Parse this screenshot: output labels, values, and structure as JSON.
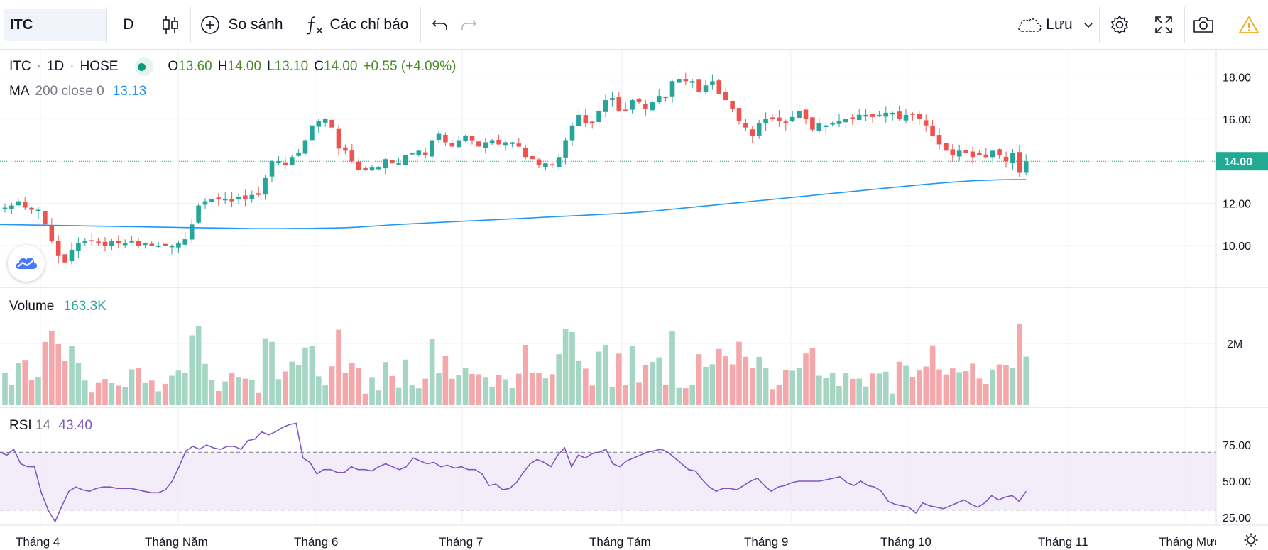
{
  "toolbar": {
    "symbol": "ITC",
    "interval": "D",
    "compare_label": "So sánh",
    "indicators_label": "Các chỉ báo",
    "save_label": "Lưu"
  },
  "legend": {
    "symbol": "ITC",
    "interval": "1D",
    "exchange": "HOSE",
    "open_label": "O",
    "open": "13.60",
    "high_label": "H",
    "high": "14.00",
    "low_label": "L",
    "low": "13.10",
    "close_label": "C",
    "close": "14.00",
    "change": "+0.55 (+4.09%)",
    "ma_label": "MA",
    "ma_params": "200 close 0",
    "ma_value": "13.13"
  },
  "volume": {
    "label": "Volume",
    "value": "163.3K",
    "axis_tick": "2M"
  },
  "rsi": {
    "label": "RSI",
    "period": "14",
    "value": "43.40",
    "upper": 70,
    "lower": 30
  },
  "colors": {
    "up": "#26a69a",
    "down": "#ef5350",
    "ma": "#2196f3",
    "rsi": "#7e57c2",
    "vol_up": "#a5d6c3",
    "vol_down": "#f5a8ab",
    "current_price_bg": "#22ab94"
  },
  "chart_data": [
    {
      "type": "candlestick",
      "title": "ITC · 1D · HOSE",
      "price_ticks": [
        10.0,
        12.0,
        14.0,
        16.0,
        18.0
      ],
      "current_price": 14.0,
      "x_ticks": [
        "Tháng 4",
        "Tháng Năm",
        "Tháng 6",
        "Tháng 7",
        "Tháng Tám",
        "Tháng 9",
        "Tháng 10",
        "Tháng 11",
        "Tháng Mười Hai"
      ],
      "close": [
        11.8,
        11.9,
        12.1,
        11.8,
        11.7,
        11.7,
        11.0,
        10.2,
        9.5,
        9.2,
        9.8,
        10.1,
        10.2,
        10.2,
        10.1,
        10.0,
        10.2,
        10.1,
        10.1,
        10.2,
        10.0,
        10.1,
        10.0,
        10.0,
        10.0,
        10.0,
        10.1,
        10.3,
        11.0,
        11.9,
        12.1,
        12.2,
        12.2,
        12.2,
        12.1,
        12.3,
        12.2,
        12.4,
        12.4,
        13.2,
        14.0,
        14.0,
        13.8,
        14.2,
        14.4,
        15.0,
        15.7,
        15.9,
        16.0,
        15.6,
        14.6,
        14.5,
        14.0,
        13.6,
        13.6,
        13.7,
        13.7,
        14.1,
        13.9,
        13.9,
        14.3,
        14.4,
        14.5,
        14.3,
        15.0,
        15.3,
        14.9,
        14.7,
        15.0,
        15.2,
        15.0,
        14.7,
        14.9,
        15.0,
        14.8,
        14.9,
        14.9,
        14.7,
        14.2,
        14.1,
        13.8,
        13.9,
        13.8,
        14.2,
        15.0,
        15.7,
        16.2,
        15.8,
        15.8,
        16.4,
        16.9,
        17.0,
        16.4,
        16.4,
        16.9,
        16.8,
        16.5,
        16.8,
        17.1,
        17.0,
        17.8,
        17.9,
        17.8,
        17.8,
        17.3,
        17.6,
        17.8,
        17.2,
        16.9,
        16.5,
        15.9,
        15.6,
        15.2,
        15.8,
        16.0,
        16.0,
        15.9,
        15.8,
        16.1,
        16.4,
        16.0,
        15.5,
        15.8,
        15.7,
        15.8,
        15.9,
        16.0,
        16.0,
        16.2,
        16.2,
        16.1,
        16.2,
        16.3,
        16.3,
        16.0,
        16.2,
        16.2,
        16.0,
        15.7,
        15.2,
        14.8,
        14.5,
        14.3,
        14.5,
        14.4,
        14.2,
        14.3,
        14.2,
        14.5,
        14.3,
        14.0,
        14.4,
        13.45,
        14.0
      ],
      "ma200": [
        11.0,
        10.99,
        10.98,
        10.97,
        10.96,
        10.95,
        10.94,
        10.93,
        10.92,
        10.91,
        10.9,
        10.89,
        10.88,
        10.87,
        10.86,
        10.85,
        10.84,
        10.83,
        10.82,
        10.81,
        10.8,
        10.8,
        10.8,
        10.81,
        10.81,
        10.82,
        10.83,
        10.85,
        10.88,
        10.92,
        10.96,
        11.0,
        11.03,
        11.06,
        11.09,
        11.12,
        11.15,
        11.18,
        11.21,
        11.24,
        11.27,
        11.3,
        11.33,
        11.36,
        11.39,
        11.42,
        11.45,
        11.48,
        11.51,
        11.55,
        11.59,
        11.64,
        11.7,
        11.76,
        11.82,
        11.88,
        11.94,
        12.0,
        12.06,
        12.12,
        12.18,
        12.24,
        12.3,
        12.36,
        12.42,
        12.48,
        12.54,
        12.6,
        12.66,
        12.72,
        12.78,
        12.84,
        12.9,
        12.95,
        13.0,
        13.04,
        13.08,
        13.1,
        13.12,
        13.13,
        13.13
      ]
    },
    {
      "type": "bar",
      "title": "Volume",
      "y_ticks": [
        "2M"
      ],
      "latest": "163.3K"
    },
    {
      "type": "line",
      "title": "RSI 14",
      "y_ticks": [
        25.0,
        50.0,
        75.0
      ],
      "values": [
        70,
        68,
        72,
        62,
        60,
        60,
        42,
        30,
        22,
        33,
        43,
        46,
        44,
        43,
        45,
        46,
        46,
        45,
        45,
        45,
        44,
        43,
        42,
        42,
        44,
        50,
        60,
        71,
        74,
        72,
        75,
        73,
        72,
        74,
        74,
        72,
        78,
        79,
        84,
        82,
        84,
        87,
        89,
        90,
        66,
        63,
        55,
        58,
        58,
        56,
        56,
        60,
        58,
        58,
        57,
        60,
        62,
        60,
        58,
        60,
        66,
        64,
        62,
        63,
        60,
        61,
        59,
        60,
        58,
        58,
        55,
        47,
        48,
        44,
        45,
        49,
        56,
        62,
        65,
        63,
        60,
        68,
        73,
        60,
        68,
        66,
        69,
        70,
        72,
        62,
        60,
        64,
        66,
        68,
        70,
        71,
        72,
        70,
        66,
        62,
        58,
        57,
        51,
        46,
        43,
        45,
        45,
        44,
        47,
        50,
        52,
        47,
        43,
        46,
        47,
        49,
        50,
        50,
        50,
        50,
        51,
        52,
        53,
        49,
        47,
        50,
        47,
        46,
        43,
        36,
        34,
        33,
        32,
        28,
        35,
        33,
        32,
        31,
        33,
        35,
        37,
        34,
        32,
        35,
        40,
        37,
        39,
        40,
        36,
        43
      ]
    }
  ]
}
